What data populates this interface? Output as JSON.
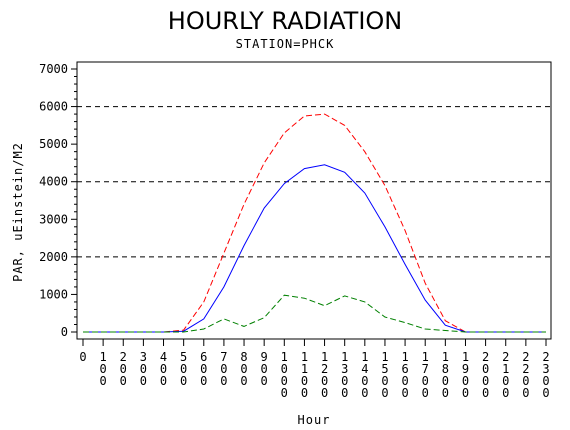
{
  "chart_data": {
    "type": "line",
    "title": "HOURLY RADIATION",
    "subtitle": "STATION=PHCK",
    "xlabel": "Hour",
    "ylabel": "PAR, uEinstein/M2",
    "x": [
      0,
      100,
      200,
      300,
      400,
      500,
      600,
      700,
      800,
      900,
      1000,
      1100,
      1200,
      1300,
      1400,
      1500,
      1600,
      1700,
      1800,
      1900,
      2000,
      2100,
      2200,
      2300
    ],
    "x_tick_labels": [
      "0",
      "100",
      "200",
      "300",
      "400",
      "500",
      "600",
      "700",
      "800",
      "900",
      "1000",
      "1100",
      "1200",
      "1300",
      "1400",
      "1500",
      "1600",
      "1700",
      "1800",
      "1900",
      "2000",
      "2100",
      "2200",
      "2300"
    ],
    "y_ticks": [
      0,
      1000,
      2000,
      3000,
      4000,
      5000,
      6000,
      7000
    ],
    "ylim": [
      0,
      7000
    ],
    "reference_lines": [
      2000,
      4000,
      6000
    ],
    "series": [
      {
        "style": "dashed",
        "color": "#ff0000",
        "values": [
          0,
          0,
          0,
          0,
          0,
          50,
          800,
          2100,
          3400,
          4500,
          5300,
          5750,
          5800,
          5500,
          4800,
          3900,
          2700,
          1300,
          300,
          0,
          0,
          0,
          0,
          0
        ]
      },
      {
        "style": "solid",
        "color": "#0000ff",
        "values": [
          0,
          0,
          0,
          0,
          0,
          20,
          350,
          1200,
          2300,
          3300,
          3950,
          4350,
          4450,
          4250,
          3700,
          2800,
          1800,
          850,
          180,
          0,
          0,
          0,
          0,
          0
        ]
      },
      {
        "style": "dashed",
        "color": "#008000",
        "values": [
          0,
          0,
          0,
          0,
          0,
          0,
          80,
          350,
          150,
          380,
          980,
          900,
          700,
          960,
          800,
          400,
          250,
          80,
          40,
          0,
          0,
          0,
          0,
          0
        ]
      }
    ]
  }
}
